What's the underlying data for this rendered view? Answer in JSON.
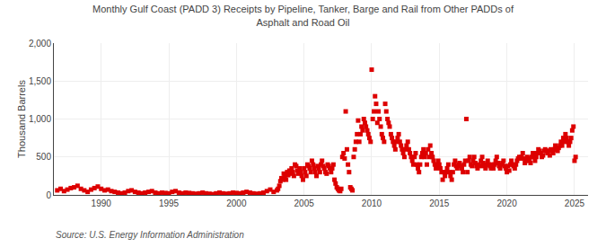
{
  "chart_data": {
    "type": "scatter",
    "title": "Monthly Gulf Coast (PADD 3) Receipts by Pipeline, Tanker, Barge and Rail from Other PADDs of\nAsphalt and Road Oil",
    "y_label": "Thousand Barrels",
    "annotations": [
      "Source: U.S. Energy Information Administration"
    ],
    "color": "#dd0000",
    "marker": "square",
    "grid": true,
    "xlim": [
      1986.5,
      2026
    ],
    "xticks": [
      1990,
      1995,
      2000,
      2005,
      2010,
      2015,
      2020,
      2025
    ],
    "ylim": [
      0,
      2000
    ],
    "yticks": [
      0,
      500,
      {
        "value": 1000,
        "label": "1,000"
      },
      {
        "value": 1500,
        "label": "1,500"
      },
      {
        "value": 2000,
        "label": "2,000"
      }
    ],
    "x": [
      1986.75,
      1987,
      1987.25,
      1987.5,
      1987.75,
      1988,
      1988.25,
      1988.5,
      1988.75,
      1989,
      1989.25,
      1989.5,
      1989.75,
      1990,
      1990.25,
      1990.5,
      1990.75,
      1991,
      1991.25,
      1991.5,
      1991.75,
      1992,
      1992.25,
      1992.5,
      1992.75,
      1993,
      1993.25,
      1993.5,
      1993.75,
      1994,
      1994.25,
      1994.5,
      1994.75,
      1995,
      1995.25,
      1995.5,
      1995.75,
      1996,
      1996.25,
      1996.5,
      1996.75,
      1997,
      1997.25,
      1997.5,
      1997.75,
      1998,
      1998.25,
      1998.5,
      1998.75,
      1999,
      1999.25,
      1999.5,
      1999.75,
      2000,
      2000.25,
      2000.5,
      2000.75,
      2001,
      2001.25,
      2001.5,
      2001.75,
      2002,
      2002.25,
      2002.5,
      2002.75,
      2003,
      2003.08,
      2003.17,
      2003.25,
      2003.33,
      2003.42,
      2003.5,
      2003.58,
      2003.67,
      2003.75,
      2003.83,
      2003.92,
      2004,
      2004.08,
      2004.17,
      2004.25,
      2004.33,
      2004.42,
      2004.5,
      2004.58,
      2004.67,
      2004.75,
      2004.83,
      2004.92,
      2005,
      2005.08,
      2005.17,
      2005.25,
      2005.33,
      2005.42,
      2005.5,
      2005.58,
      2005.67,
      2005.75,
      2005.83,
      2005.92,
      2006,
      2006.08,
      2006.17,
      2006.25,
      2006.33,
      2006.42,
      2006.5,
      2006.58,
      2006.67,
      2006.75,
      2006.83,
      2006.92,
      2007,
      2007.08,
      2007.17,
      2007.25,
      2007.33,
      2007.42,
      2007.5,
      2007.58,
      2007.67,
      2007.75,
      2007.83,
      2007.92,
      2008,
      2008.08,
      2008.17,
      2008.25,
      2008.33,
      2008.42,
      2008.5,
      2008.58,
      2008.67,
      2008.75,
      2008.83,
      2008.92,
      2009,
      2009.08,
      2009.17,
      2009.25,
      2009.33,
      2009.42,
      2009.5,
      2009.58,
      2009.67,
      2009.75,
      2009.83,
      2009.92,
      2010,
      2010.08,
      2010.17,
      2010.25,
      2010.33,
      2010.42,
      2010.5,
      2010.58,
      2010.67,
      2010.75,
      2010.83,
      2010.92,
      2011,
      2011.08,
      2011.17,
      2011.25,
      2011.33,
      2011.42,
      2011.5,
      2011.58,
      2011.67,
      2011.75,
      2011.83,
      2011.92,
      2012,
      2012.08,
      2012.17,
      2012.25,
      2012.33,
      2012.42,
      2012.5,
      2012.58,
      2012.67,
      2012.75,
      2012.83,
      2012.92,
      2013,
      2013.08,
      2013.17,
      2013.25,
      2013.33,
      2013.42,
      2013.5,
      2013.58,
      2013.67,
      2013.75,
      2013.83,
      2013.92,
      2014,
      2014.08,
      2014.17,
      2014.25,
      2014.33,
      2014.42,
      2014.5,
      2014.58,
      2014.67,
      2014.75,
      2014.83,
      2014.92,
      2015,
      2015.08,
      2015.17,
      2015.25,
      2015.33,
      2015.42,
      2015.5,
      2015.58,
      2015.67,
      2015.75,
      2015.83,
      2015.92,
      2016,
      2016.08,
      2016.17,
      2016.25,
      2016.33,
      2016.42,
      2016.5,
      2016.58,
      2016.67,
      2016.75,
      2016.83,
      2016.92,
      2017,
      2017.08,
      2017.17,
      2017.25,
      2017.33,
      2017.42,
      2017.5,
      2017.58,
      2017.67,
      2017.75,
      2017.83,
      2017.92,
      2018,
      2018.08,
      2018.17,
      2018.25,
      2018.33,
      2018.42,
      2018.5,
      2018.58,
      2018.67,
      2018.75,
      2018.83,
      2018.92,
      2019,
      2019.08,
      2019.17,
      2019.25,
      2019.33,
      2019.42,
      2019.5,
      2019.58,
      2019.67,
      2019.75,
      2019.83,
      2019.92,
      2020,
      2020.08,
      2020.17,
      2020.25,
      2020.33,
      2020.42,
      2020.5,
      2020.58,
      2020.67,
      2020.75,
      2020.83,
      2020.92,
      2021,
      2021.08,
      2021.17,
      2021.25,
      2021.33,
      2021.42,
      2021.5,
      2021.58,
      2021.67,
      2021.75,
      2021.83,
      2021.92,
      2022,
      2022.08,
      2022.17,
      2022.25,
      2022.33,
      2022.42,
      2022.5,
      2022.58,
      2022.67,
      2022.75,
      2022.83,
      2022.92,
      2023,
      2023.08,
      2023.17,
      2023.25,
      2023.33,
      2023.42,
      2023.5,
      2023.58,
      2023.67,
      2023.75,
      2023.83,
      2023.92,
      2024,
      2024.08,
      2024.17,
      2024.25,
      2024.33,
      2024.42,
      2024.5,
      2024.58,
      2024.67,
      2024.75,
      2024.83,
      2024.92,
      2025,
      2025.08
    ],
    "values": [
      60,
      80,
      50,
      70,
      90,
      100,
      120,
      80,
      60,
      40,
      70,
      90,
      110,
      80,
      60,
      70,
      50,
      40,
      30,
      20,
      30,
      50,
      60,
      40,
      30,
      20,
      30,
      40,
      50,
      30,
      20,
      30,
      25,
      20,
      40,
      50,
      30,
      20,
      30,
      25,
      20,
      15,
      20,
      30,
      20,
      15,
      10,
      20,
      30,
      20,
      15,
      20,
      30,
      25,
      20,
      30,
      40,
      30,
      20,
      15,
      20,
      30,
      50,
      70,
      40,
      60,
      80,
      120,
      180,
      220,
      200,
      280,
      250,
      200,
      300,
      260,
      320,
      280,
      350,
      300,
      250,
      400,
      380,
      320,
      280,
      350,
      300,
      250,
      200,
      350,
      300,
      250,
      400,
      380,
      350,
      300,
      450,
      400,
      350,
      300,
      250,
      380,
      350,
      300,
      400,
      450,
      380,
      350,
      300,
      280,
      400,
      380,
      350,
      300,
      350,
      400,
      200,
      150,
      100,
      80,
      60,
      50,
      80,
      500,
      550,
      480,
      1100,
      600,
      400,
      300,
      100,
      80,
      60,
      500,
      600,
      700,
      800,
      980,
      700,
      800,
      900,
      850,
      1000,
      950,
      900,
      850,
      800,
      750,
      700,
      1650,
      1000,
      1100,
      1300,
      1200,
      950,
      1100,
      1000,
      900,
      800,
      750,
      700,
      1200,
      1100,
      1000,
      950,
      900,
      800,
      750,
      700,
      650,
      600,
      700,
      750,
      800,
      700,
      650,
      600,
      550,
      500,
      600,
      650,
      700,
      600,
      550,
      500,
      450,
      400,
      500,
      550,
      400,
      350,
      300,
      400,
      500,
      550,
      600,
      500,
      550,
      400,
      600,
      500,
      650,
      550,
      500,
      450,
      400,
      350,
      400,
      450,
      400,
      350,
      300,
      200,
      300,
      250,
      300,
      350,
      400,
      300,
      250,
      200,
      300,
      400,
      450,
      380,
      350,
      400,
      420,
      380,
      350,
      300,
      400,
      450,
      1000,
      300,
      450,
      500,
      400,
      380,
      450,
      500,
      420,
      380,
      350,
      400,
      380,
      450,
      500,
      420,
      380,
      350,
      400,
      450,
      400,
      380,
      350,
      400,
      350,
      400,
      450,
      500,
      420,
      380,
      350,
      400,
      420,
      450,
      380,
      350,
      300,
      380,
      320,
      400,
      450,
      400,
      380,
      350,
      400,
      450,
      480,
      500,
      480,
      500,
      550,
      480,
      420,
      450,
      500,
      480,
      450,
      420,
      500,
      550,
      500,
      450,
      500,
      550,
      600,
      580,
      550,
      500,
      520,
      580,
      600,
      580,
      550,
      580,
      520,
      600,
      580,
      550,
      600,
      650,
      600,
      580,
      620,
      650,
      700,
      650,
      750,
      700,
      800,
      750,
      700,
      650,
      700,
      750,
      850,
      900,
      450,
      500
    ]
  }
}
